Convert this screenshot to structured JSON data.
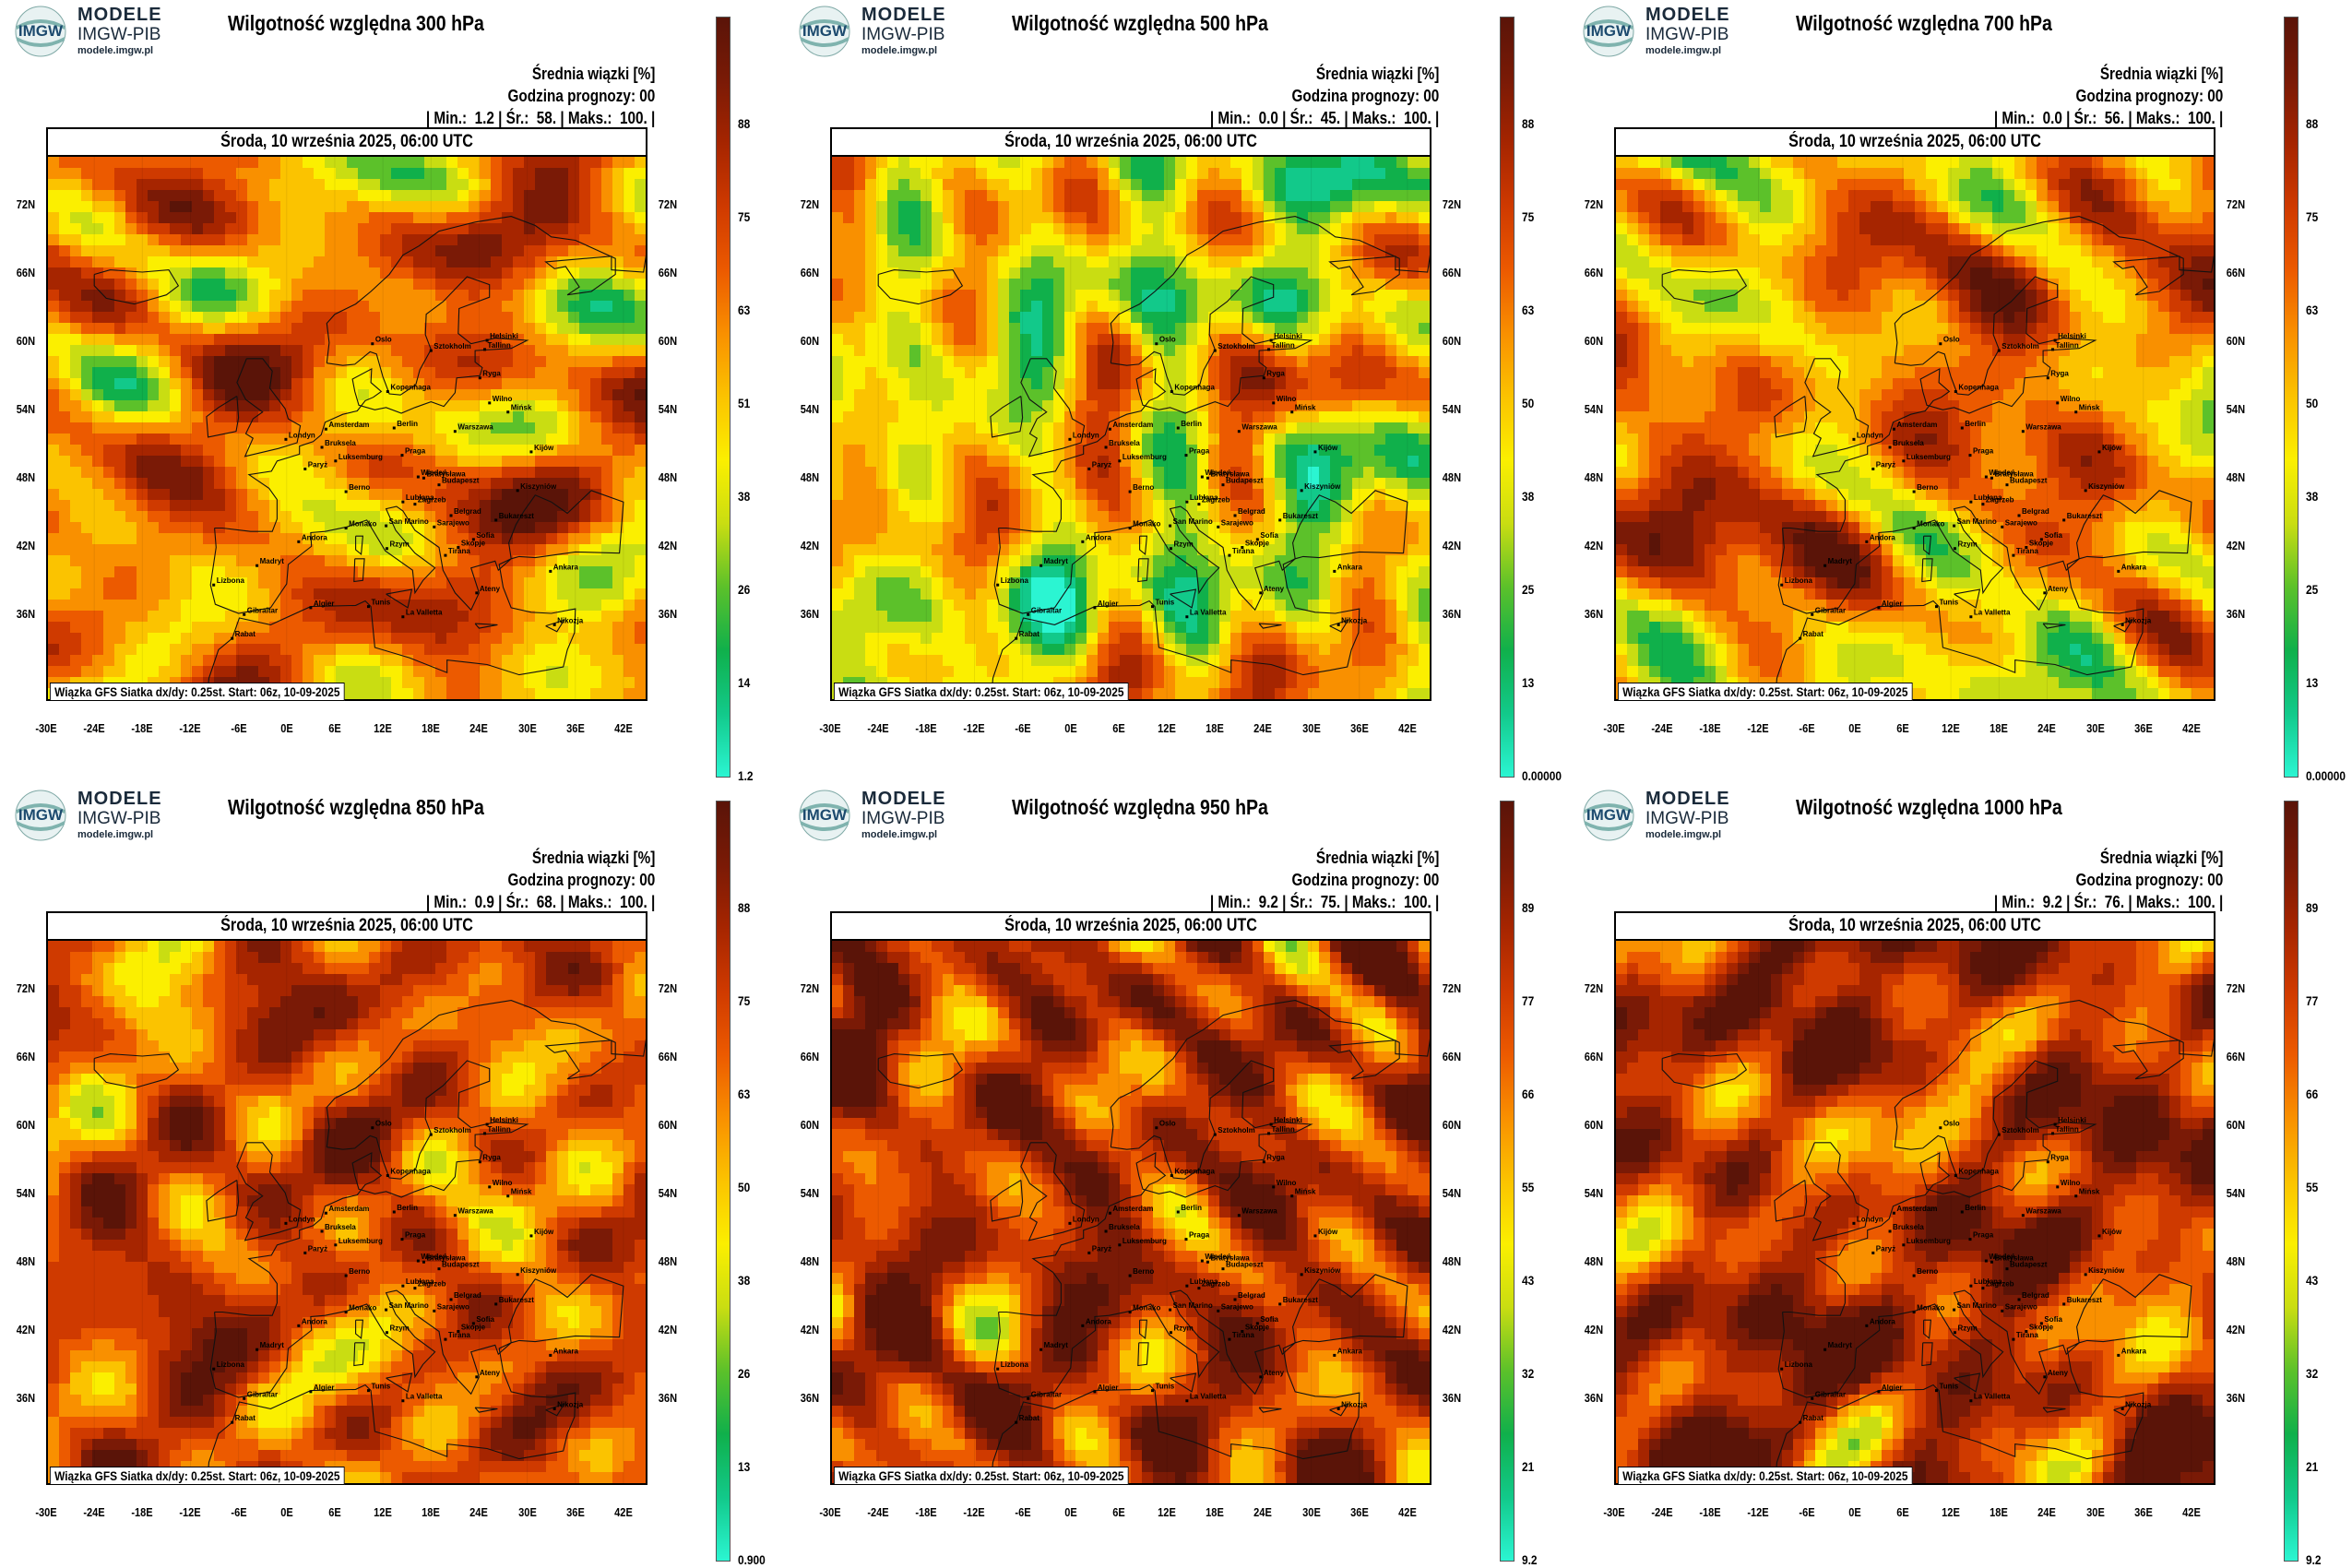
{
  "brand": {
    "line1": "MODELE",
    "line2": "IMGW-PIB",
    "line3": "modele.imgw.pl",
    "logo_text": "IMGW"
  },
  "common": {
    "subtitle": "Średnia wiązki [%]",
    "forecast_hour": "Godzina prognozy: 00",
    "date": "Środa, 10 września 2025, 06:00 UTC",
    "footer": "Wiązka GFS Siatka dx/dy: 0.25st. Start: 06z, 10-09-2025",
    "x_ticks": [
      "-30E",
      "-24E",
      "-18E",
      "-12E",
      "-6E",
      "0E",
      "6E",
      "12E",
      "18E",
      "24E",
      "30E",
      "36E",
      "42E"
    ],
    "y_ticks": [
      "72N",
      "66N",
      "60N",
      "54N",
      "48N",
      "42N",
      "36N"
    ]
  },
  "colorscale": [
    "#2bf5d2",
    "#12c98a",
    "#10b04b",
    "#5cc12a",
    "#c9dd12",
    "#fbef00",
    "#fbc300",
    "#f99000",
    "#ec5a00",
    "#cf3a00",
    "#a62500",
    "#7a1a06",
    "#5a1408"
  ],
  "panels": [
    {
      "title": "Wilgotność względna 300 hPa",
      "stats": {
        "min": "1.2",
        "mean": "58.",
        "max": "100."
      },
      "cbar_labels": [
        "88",
        "75",
        "63",
        "51",
        "38",
        "26",
        "14",
        "1.2"
      ],
      "base": 0.6,
      "seed": 3
    },
    {
      "title": "Wilgotność względna 500 hPa",
      "stats": {
        "min": "0.0",
        "mean": "45.",
        "max": "100."
      },
      "cbar_labels": [
        "88",
        "75",
        "63",
        "50",
        "38",
        "25",
        "13",
        "0.00000"
      ],
      "base": 0.45,
      "seed": 7
    },
    {
      "title": "Wilgotność względna 700 hPa",
      "stats": {
        "min": "0.0",
        "mean": "56.",
        "max": "100."
      },
      "cbar_labels": [
        "88",
        "75",
        "63",
        "50",
        "38",
        "25",
        "13",
        "0.00000"
      ],
      "base": 0.56,
      "seed": 11
    },
    {
      "title": "Wilgotność względna 850 hPa",
      "stats": {
        "min": "0.9",
        "mean": "68.",
        "max": "100."
      },
      "cbar_labels": [
        "88",
        "75",
        "63",
        "50",
        "38",
        "26",
        "13",
        "0.900"
      ],
      "base": 0.68,
      "seed": 13
    },
    {
      "title": "Wilgotność względna 950 hPa",
      "stats": {
        "min": "9.2",
        "mean": "75.",
        "max": "100."
      },
      "cbar_labels": [
        "89",
        "77",
        "66",
        "55",
        "43",
        "32",
        "21",
        "9.2"
      ],
      "base": 0.75,
      "seed": 17
    },
    {
      "title": "Wilgotność względna 1000 hPa",
      "stats": {
        "min": "9.2",
        "mean": "76.",
        "max": "100."
      },
      "cbar_labels": [
        "89",
        "77",
        "66",
        "55",
        "43",
        "32",
        "21",
        "9.2"
      ],
      "base": 0.76,
      "seed": 19
    }
  ],
  "cities": [
    "Oslo",
    "Sztokholm",
    "Helsinki",
    "Tallinn",
    "Ryga",
    "Wilno",
    "Mińsk",
    "Kopenhaga",
    "Amsterdam",
    "Berlin",
    "Warszawa",
    "Londyn",
    "Bruksela",
    "Luksemburg",
    "Paryż",
    "Praga",
    "Wiedeń",
    "Bratysława",
    "Budapeszt",
    "Kijów",
    "Kiszyniów",
    "Berno",
    "Lublana",
    "Zagrzeb",
    "Sarajewo",
    "Belgrad",
    "Bukareszt",
    "Sofia",
    "Skopje",
    "Tirana",
    "Ateny",
    "Ankara",
    "Rzym",
    "Madryt",
    "Lizbona",
    "Andora",
    "Monako",
    "San Marino",
    "Gibraltar",
    "Rabat",
    "Algier",
    "Tunis",
    "La Valletta",
    "Nikozja"
  ]
}
